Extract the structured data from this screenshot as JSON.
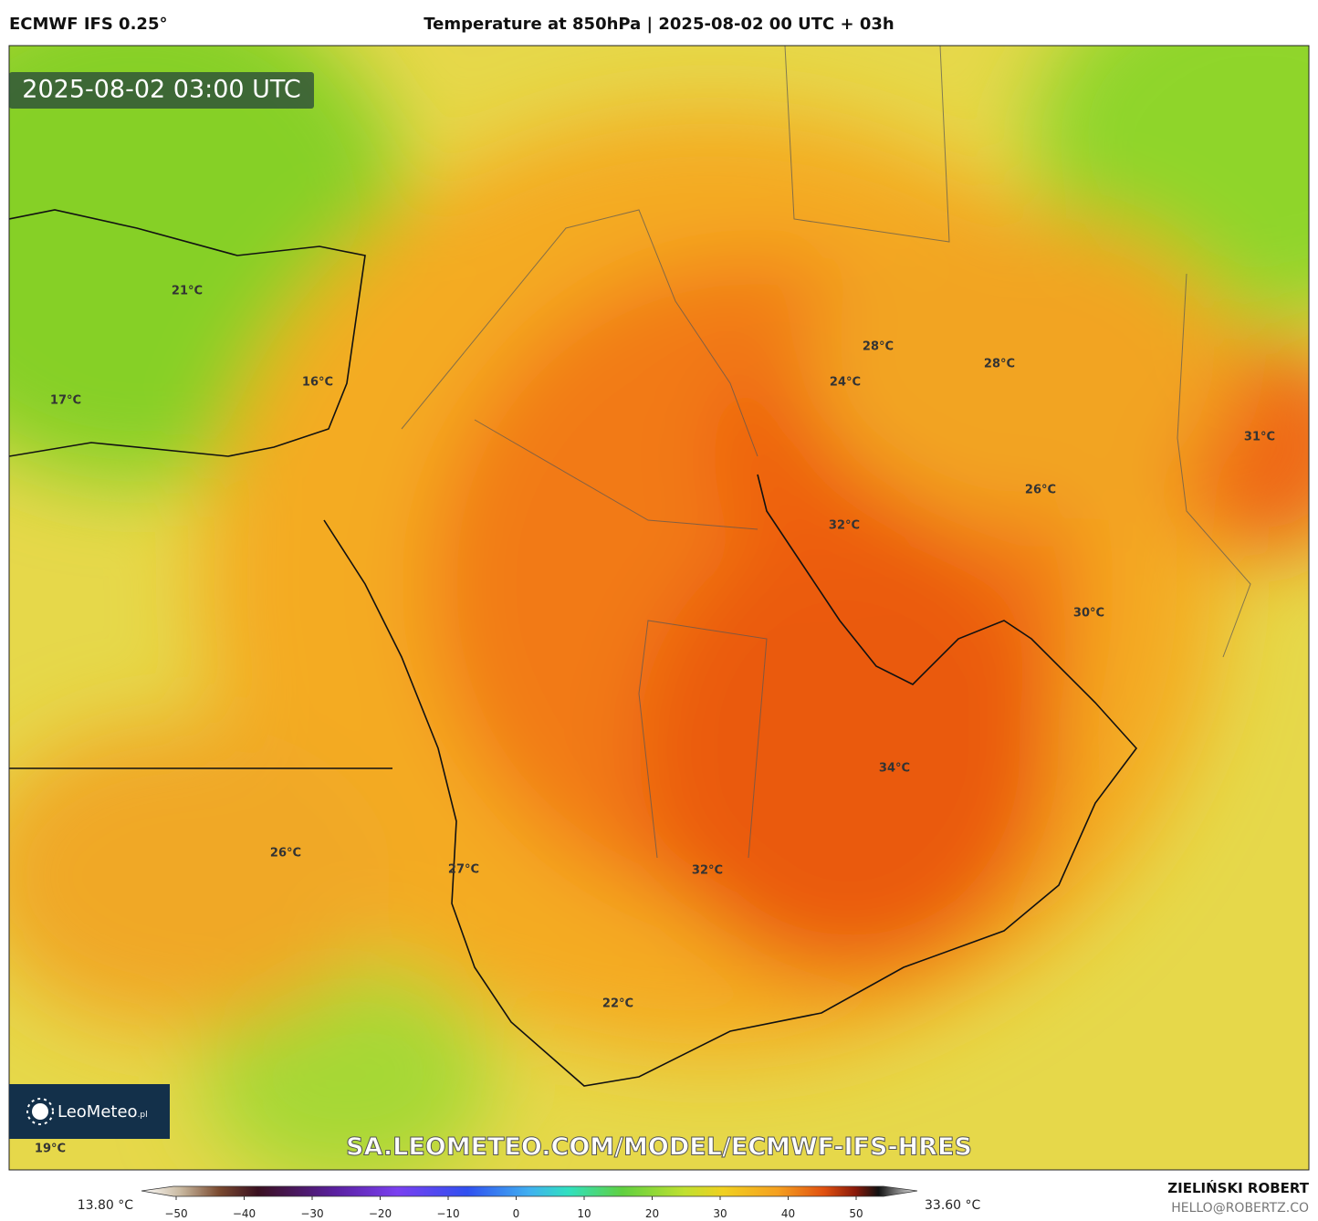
{
  "header": {
    "model": "ECMWF IFS 0.25°",
    "title": "Temperature at 850hPa | 2025-08-02 00 UTC + 03h"
  },
  "map": {
    "timestamp": "2025-08-02 03:00 UTC",
    "labels": [
      "21°C",
      "16°C",
      "17°C",
      "28°C",
      "24°C",
      "28°C",
      "31°C",
      "26°C",
      "32°C",
      "30°C",
      "34°C",
      "26°C",
      "27°C",
      "32°C",
      "22°C",
      "19°C"
    ],
    "watermark": "SA.LEOMETEO.COM/MODEL/ECMWF-IFS-HRES",
    "logo": "LeoMeteo",
    "logo_suffix": ".pl"
  },
  "colorbar": {
    "min": "13.80 °C",
    "max": "33.60 °C",
    "ticks": [
      "−50",
      "−40",
      "−30",
      "−20",
      "−10",
      "0",
      "10",
      "20",
      "30",
      "40",
      "50"
    ]
  },
  "footer": {
    "author": "ZIELIŃSKI ROBERT",
    "email": "HELLO@ROBERTZ.CO"
  }
}
